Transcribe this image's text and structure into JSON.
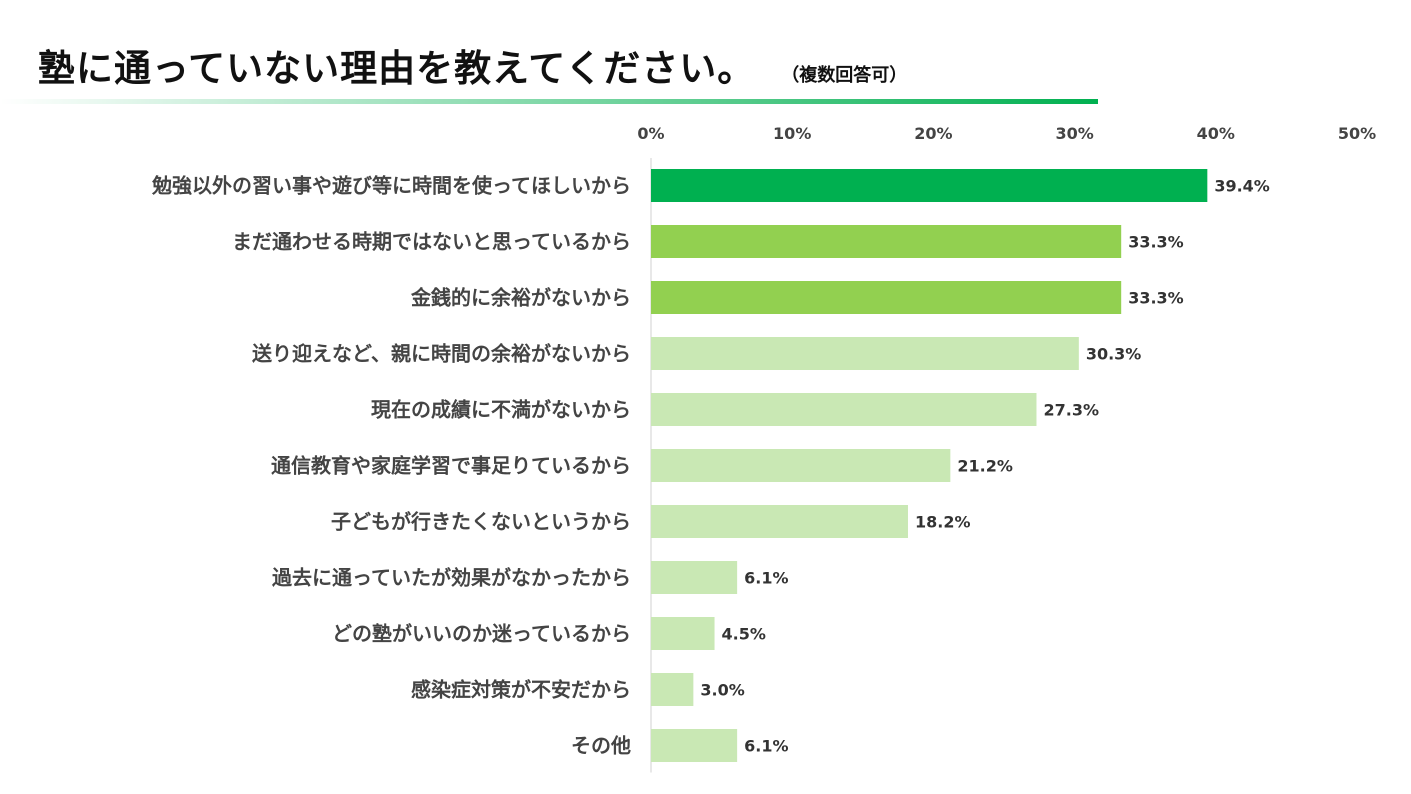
{
  "title": "塾に通っていない理由を教えてください。",
  "subtitle": "（複数回答可）",
  "colors": {
    "top": "#00b050",
    "second": "#92d050",
    "rest": "#c9e8b4",
    "rule": "#00b050"
  },
  "chart_data": {
    "type": "bar",
    "orientation": "horizontal",
    "title": "塾に通っていない理由を教えてください。",
    "subtitle": "（複数回答可）",
    "categories": [
      "勉強以外の習い事や遊び等に時間を使ってほしいから",
      "まだ通わせる時期ではないと思っているから",
      "金銭的に余裕がないから",
      "送り迎えなど、親に時間の余裕がないから",
      "現在の成績に不満がないから",
      "通信教育や家庭学習で事足りているから",
      "子どもが行きたくないというから",
      "過去に通っていたが効果がなかったから",
      "どの塾がいいのか迷っているから",
      "感染症対策が不安だから",
      "その他"
    ],
    "values": [
      39.4,
      33.3,
      33.3,
      30.3,
      27.3,
      21.2,
      18.2,
      6.1,
      4.5,
      3.0,
      6.1
    ],
    "value_labels": [
      "39.4%",
      "33.3%",
      "33.3%",
      "30.3%",
      "27.3%",
      "21.2%",
      "18.2%",
      "6.1%",
      "4.5%",
      "3.0%",
      "6.1%"
    ],
    "xlim": [
      0,
      50
    ],
    "xticks": [
      "0%",
      "10%",
      "20%",
      "30%",
      "40%",
      "50%"
    ],
    "xtick_values": [
      0,
      10,
      20,
      30,
      40,
      50
    ],
    "bar_color_groups": [
      "top",
      "second",
      "second",
      "rest",
      "rest",
      "rest",
      "rest",
      "rest",
      "rest",
      "rest",
      "rest"
    ],
    "axis_position": "top",
    "grid": false,
    "legend": "none"
  }
}
